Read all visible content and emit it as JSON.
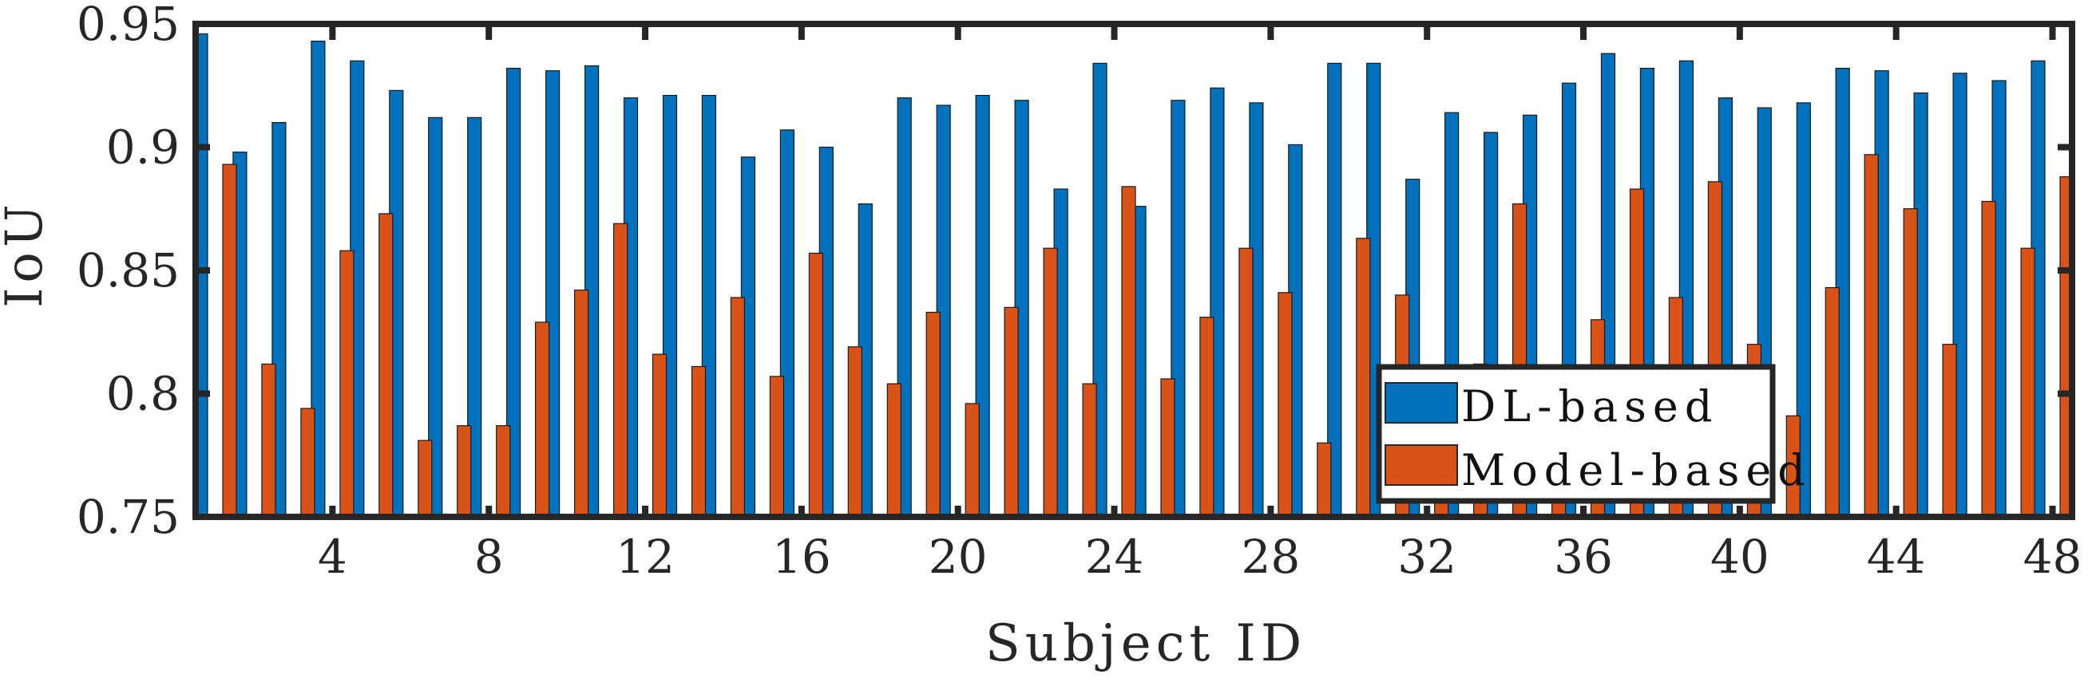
{
  "chart_data": {
    "type": "bar",
    "xlabel": "Subject ID",
    "ylabel": "IoU",
    "ylim": [
      0.75,
      0.95
    ],
    "yticks": [
      "0.75",
      "0.8",
      "0.85",
      "0.9",
      "0.95"
    ],
    "xticks": [
      "4",
      "8",
      "12",
      "16",
      "20",
      "24",
      "28",
      "32",
      "36",
      "40",
      "44",
      "48"
    ],
    "categories": [
      1,
      2,
      3,
      4,
      5,
      6,
      7,
      8,
      9,
      10,
      11,
      12,
      13,
      14,
      15,
      16,
      17,
      18,
      19,
      20,
      21,
      22,
      23,
      24,
      25,
      26,
      27,
      28,
      29,
      30,
      31,
      32,
      33,
      34,
      35,
      36,
      37,
      38,
      39,
      40,
      41,
      42,
      43,
      44,
      45,
      46,
      47,
      48
    ],
    "series": [
      {
        "name": "DL-based",
        "color": "#0072BD",
        "values": [
          0.946,
          0.898,
          0.91,
          0.943,
          0.935,
          0.923,
          0.912,
          0.912,
          0.932,
          0.931,
          0.933,
          0.92,
          0.921,
          0.921,
          0.896,
          0.907,
          0.9,
          0.877,
          0.92,
          0.917,
          0.921,
          0.919,
          0.883,
          0.934,
          0.876,
          0.919,
          0.924,
          0.918,
          0.901,
          0.934,
          0.934,
          0.887,
          0.914,
          0.906,
          0.913,
          0.926,
          0.938,
          0.932,
          0.935,
          0.92,
          0.916,
          0.918,
          0.932,
          0.931,
          0.922,
          0.93,
          0.927,
          0.935
        ]
      },
      {
        "name": "Model-based",
        "color": "#D95319",
        "values": [
          0.893,
          0.812,
          0.794,
          0.858,
          0.873,
          0.781,
          0.787,
          0.787,
          0.829,
          0.842,
          0.869,
          0.816,
          0.811,
          0.839,
          0.807,
          0.857,
          0.819,
          0.804,
          0.833,
          0.796,
          0.835,
          0.859,
          0.804,
          0.884,
          0.806,
          0.831,
          0.859,
          0.841,
          0.78,
          0.863,
          0.84,
          0.811,
          0.812,
          0.877,
          0.795,
          0.83,
          0.883,
          0.839,
          0.886,
          0.82,
          0.791,
          0.843,
          0.897,
          0.875,
          0.82,
          0.878,
          0.859,
          0.888
        ]
      }
    ],
    "legend": {
      "position": "bottom-right",
      "entries": [
        "DL-based",
        "Model-based"
      ]
    },
    "grid": false
  }
}
